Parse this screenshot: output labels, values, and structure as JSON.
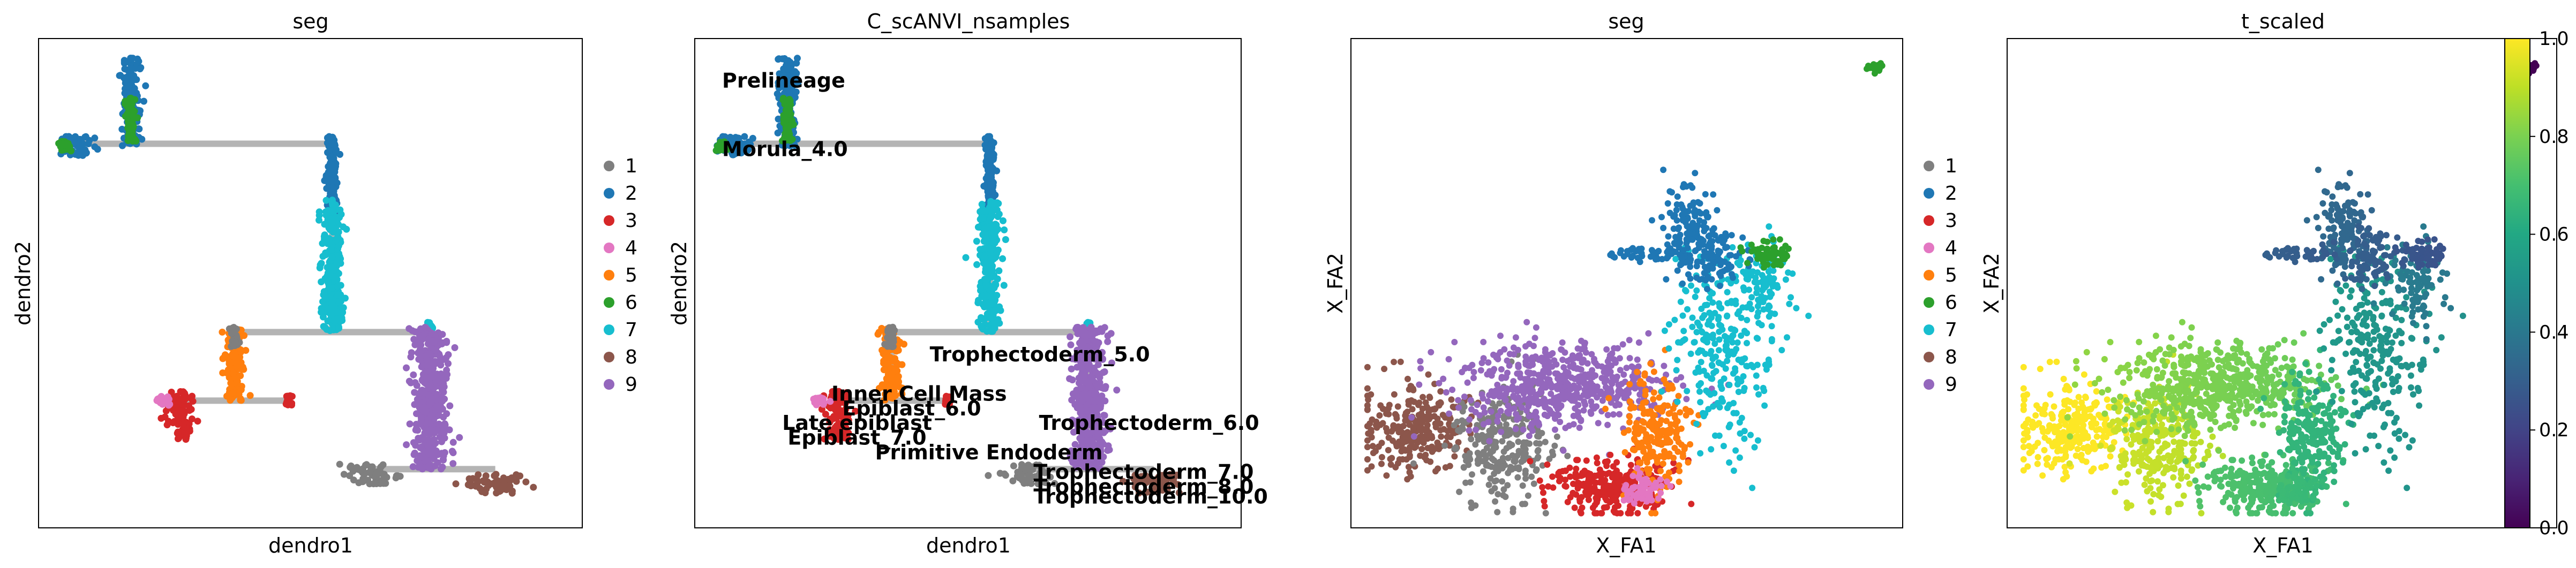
{
  "chart_data": [
    {
      "type": "scatter",
      "title": "seg",
      "xlabel": "dendro1",
      "ylabel": "dendro2",
      "legend": {
        "placement": "right",
        "entries": [
          "1",
          "2",
          "3",
          "4",
          "5",
          "6",
          "7",
          "8",
          "9"
        ]
      },
      "ticks": "none",
      "grid": false
    },
    {
      "type": "scatter",
      "title": "C_scANVI_nsamples",
      "xlabel": "dendro1",
      "ylabel": "dendro2",
      "annotations": [
        "Prelineage",
        "Morula_4.0",
        "Trophectoderm_5.0",
        "Inner Cell Mass",
        "Epiblast_6.0",
        "Late epiblast",
        "Epiblast_7.0",
        "Primitive Endoderm",
        "Trophectoderm_6.0",
        "Trophectoderm_7.0",
        "Trophectoderm_8.0",
        "Trophectoderm_10.0"
      ],
      "ticks": "none",
      "grid": false
    },
    {
      "type": "scatter",
      "title": "seg",
      "xlabel": "X_FA1",
      "ylabel": "X_FA2",
      "legend": {
        "placement": "right",
        "entries": [
          "1",
          "2",
          "3",
          "4",
          "5",
          "6",
          "7",
          "8",
          "9"
        ]
      },
      "ticks": "none",
      "grid": false
    },
    {
      "type": "scatter",
      "title": "t_scaled",
      "xlabel": "X_FA1",
      "ylabel": "X_FA2",
      "colorbar": {
        "colormap": "viridis",
        "range": [
          0.0,
          1.0
        ],
        "ticks": [
          "0.0",
          "0.2",
          "0.4",
          "0.6",
          "0.8",
          "1.0"
        ]
      },
      "ticks": "none",
      "grid": false
    }
  ],
  "palette": {
    "1": "#7f7f7f",
    "2": "#1f77b4",
    "3": "#d62728",
    "4": "#e377c2",
    "5": "#ff7f0e",
    "6": "#2ca02c",
    "7": "#17becf",
    "8": "#8c564b",
    "9": "#9467bd"
  },
  "colors": {
    "dendrogram_line": "#b4b4b4",
    "frame": "#000000"
  }
}
